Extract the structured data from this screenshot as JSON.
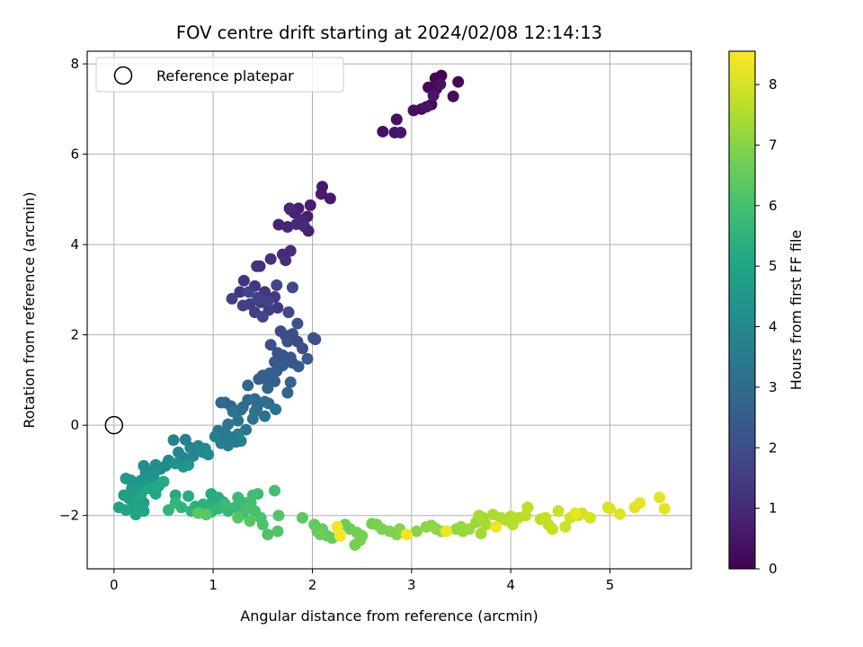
{
  "chart_data": {
    "type": "scatter",
    "title": "FOV centre drift starting at 2024/02/08 12:14:13",
    "xlabel": "Angular distance from reference (arcmin)",
    "ylabel": "Rotation from reference (arcmin)",
    "xlim": [
      -0.27,
      5.82
    ],
    "ylim": [
      -3.18,
      8.28
    ],
    "x_ticks": [
      0,
      1,
      2,
      3,
      4,
      5
    ],
    "y_ticks": [
      -2,
      0,
      2,
      4,
      6,
      8
    ],
    "grid": true,
    "legend": {
      "placement": "upper-left",
      "entries": [
        "Reference platepar"
      ]
    },
    "reference_point": {
      "x": 0,
      "y": 0
    },
    "colorbar": {
      "label": "Hours from first FF file",
      "colormap": "viridis",
      "range": [
        0,
        8.55
      ],
      "ticks": [
        0,
        1,
        2,
        3,
        4,
        5,
        6,
        7,
        8
      ]
    },
    "series": [
      {
        "comment_free": true,
        "points": [
          [
            3.3,
            7.74
          ],
          [
            3.47,
            7.6
          ],
          [
            3.24,
            7.68
          ],
          [
            3.25,
            7.45
          ],
          [
            3.17,
            7.48
          ],
          [
            3.2,
            7.1
          ],
          [
            3.42,
            7.28
          ],
          [
            3.1,
            7.0
          ],
          [
            3.02,
            6.97
          ],
          [
            2.85,
            6.77
          ],
          [
            2.71,
            6.5
          ],
          [
            2.83,
            6.48
          ],
          [
            3.29,
            7.55
          ],
          [
            3.15,
            7.05
          ],
          [
            3.22,
            7.3
          ],
          [
            2.89,
            6.48
          ],
          [
            2.1,
            5.28
          ],
          [
            2.18,
            5.02
          ],
          [
            2.09,
            5.12
          ],
          [
            1.98,
            4.87
          ],
          [
            1.95,
            4.62
          ],
          [
            1.86,
            4.8
          ],
          [
            1.77,
            4.8
          ],
          [
            1.82,
            4.7
          ],
          [
            1.96,
            4.3
          ],
          [
            1.66,
            4.44
          ],
          [
            1.9,
            4.55
          ],
          [
            1.75,
            4.39
          ],
          [
            1.78,
            4.77
          ],
          [
            1.92,
            4.4
          ],
          [
            1.84,
            4.45
          ],
          [
            1.7,
            3.78
          ],
          [
            1.78,
            3.86
          ],
          [
            1.73,
            3.65
          ],
          [
            1.58,
            3.68
          ],
          [
            1.47,
            3.52
          ],
          [
            1.44,
            3.52
          ],
          [
            1.31,
            3.2
          ],
          [
            1.42,
            3.08
          ],
          [
            1.27,
            2.95
          ],
          [
            1.52,
            2.95
          ],
          [
            1.48,
            2.72
          ],
          [
            1.62,
            2.84
          ],
          [
            1.65,
            2.6
          ],
          [
            1.56,
            2.55
          ],
          [
            1.37,
            2.68
          ],
          [
            1.42,
            2.5
          ],
          [
            1.3,
            2.65
          ],
          [
            1.19,
            2.8
          ],
          [
            1.45,
            2.82
          ],
          [
            1.55,
            2.75
          ],
          [
            1.36,
            2.95
          ],
          [
            1.5,
            2.4
          ],
          [
            1.64,
            3.1
          ],
          [
            1.8,
            3.05
          ],
          [
            1.76,
            2.5
          ],
          [
            1.68,
            2.08
          ],
          [
            1.73,
            1.98
          ],
          [
            1.8,
            2.02
          ],
          [
            1.85,
            1.85
          ],
          [
            1.9,
            1.7
          ],
          [
            1.75,
            1.85
          ],
          [
            1.58,
            1.78
          ],
          [
            1.65,
            1.6
          ],
          [
            1.85,
            2.25
          ],
          [
            2.01,
            1.93
          ],
          [
            2.03,
            1.9
          ],
          [
            1.7,
            1.55
          ],
          [
            1.78,
            1.5
          ],
          [
            1.62,
            1.4
          ],
          [
            1.8,
            1.38
          ],
          [
            1.86,
            1.3
          ],
          [
            1.7,
            1.32
          ],
          [
            1.95,
            1.47
          ],
          [
            1.64,
            1.2
          ],
          [
            1.57,
            1.15
          ],
          [
            1.5,
            1.1
          ],
          [
            1.46,
            1.02
          ],
          [
            1.56,
            0.92
          ],
          [
            1.62,
            0.97
          ],
          [
            1.78,
            0.95
          ],
          [
            1.75,
            0.72
          ],
          [
            1.55,
            0.82
          ],
          [
            1.35,
            0.88
          ],
          [
            1.12,
            0.5
          ],
          [
            1.18,
            0.42
          ],
          [
            1.08,
            0.5
          ],
          [
            1.3,
            0.4
          ],
          [
            1.35,
            0.56
          ],
          [
            1.42,
            0.58
          ],
          [
            1.44,
            0.38
          ],
          [
            1.52,
            0.52
          ],
          [
            1.56,
            0.48
          ],
          [
            1.28,
            0.34
          ],
          [
            1.42,
            0.3
          ],
          [
            1.63,
            0.35
          ],
          [
            1.52,
            0.2
          ],
          [
            1.4,
            0.14
          ],
          [
            1.2,
            0.3
          ],
          [
            1.25,
            0.1
          ],
          [
            1.15,
            0.02
          ],
          [
            1.33,
            -0.1
          ],
          [
            1.12,
            -0.17
          ],
          [
            1.05,
            -0.12
          ],
          [
            1.1,
            -0.33
          ],
          [
            1.18,
            -0.27
          ],
          [
            1.25,
            -0.2
          ],
          [
            1.23,
            -0.37
          ],
          [
            1.15,
            -0.45
          ],
          [
            1.08,
            -0.4
          ],
          [
            1.02,
            -0.25
          ],
          [
            1.28,
            -0.35
          ],
          [
            0.72,
            -0.32
          ],
          [
            0.6,
            -0.33
          ],
          [
            0.77,
            -0.5
          ],
          [
            0.85,
            -0.46
          ],
          [
            0.65,
            -0.6
          ],
          [
            0.7,
            -0.72
          ],
          [
            0.8,
            -0.68
          ],
          [
            0.9,
            -0.6
          ],
          [
            0.92,
            -0.52
          ],
          [
            0.95,
            -0.65
          ],
          [
            0.55,
            -0.78
          ],
          [
            0.52,
            -0.9
          ],
          [
            0.42,
            -0.88
          ],
          [
            0.47,
            -0.97
          ],
          [
            0.38,
            -1.02
          ],
          [
            0.32,
            -1.05
          ],
          [
            0.3,
            -0.9
          ],
          [
            0.4,
            -1.12
          ],
          [
            0.62,
            -0.85
          ],
          [
            0.7,
            -0.92
          ],
          [
            0.75,
            -0.88
          ],
          [
            0.27,
            -1.23
          ],
          [
            0.38,
            -1.3
          ],
          [
            0.33,
            -1.18
          ],
          [
            0.22,
            -1.28
          ],
          [
            0.17,
            -1.22
          ],
          [
            0.12,
            -1.18
          ],
          [
            0.18,
            -1.4
          ],
          [
            0.28,
            -1.48
          ],
          [
            0.2,
            -1.58
          ],
          [
            0.15,
            -1.62
          ],
          [
            0.1,
            -1.55
          ],
          [
            0.23,
            -1.65
          ],
          [
            0.3,
            -1.72
          ],
          [
            0.25,
            -1.8
          ],
          [
            0.18,
            -1.85
          ],
          [
            0.05,
            -1.82
          ],
          [
            0.12,
            -1.88
          ],
          [
            0.22,
            -1.98
          ],
          [
            0.3,
            -1.9
          ],
          [
            0.27,
            -1.55
          ],
          [
            0.42,
            -1.52
          ],
          [
            0.35,
            -1.4
          ],
          [
            0.45,
            -1.35
          ],
          [
            0.5,
            -1.25
          ],
          [
            0.62,
            -1.55
          ],
          [
            0.75,
            -1.57
          ],
          [
            0.98,
            -1.52
          ],
          [
            1.0,
            -1.65
          ],
          [
            1.05,
            -1.6
          ],
          [
            1.1,
            -1.7
          ],
          [
            1.0,
            -1.78
          ],
          [
            0.9,
            -1.75
          ],
          [
            0.82,
            -1.8
          ],
          [
            0.78,
            -1.9
          ],
          [
            0.68,
            -1.82
          ],
          [
            0.55,
            -1.88
          ],
          [
            0.62,
            -1.72
          ],
          [
            0.98,
            -1.92
          ],
          [
            1.05,
            -1.85
          ],
          [
            1.15,
            -1.9
          ],
          [
            1.22,
            -1.82
          ],
          [
            1.12,
            -1.75
          ],
          [
            1.25,
            -1.6
          ],
          [
            1.32,
            -1.72
          ],
          [
            1.38,
            -1.72
          ],
          [
            1.45,
            -1.52
          ],
          [
            1.4,
            -1.55
          ],
          [
            1.62,
            -1.45
          ],
          [
            1.3,
            -1.95
          ],
          [
            1.35,
            -1.85
          ],
          [
            1.42,
            -1.9
          ],
          [
            1.48,
            -2.05
          ],
          [
            1.5,
            -2.2
          ],
          [
            1.55,
            -2.42
          ],
          [
            1.65,
            -2.35
          ],
          [
            1.66,
            -2.0
          ],
          [
            1.37,
            -2.12
          ],
          [
            1.25,
            -2.05
          ],
          [
            0.93,
            -1.98
          ],
          [
            0.85,
            -1.95
          ],
          [
            1.9,
            -2.05
          ],
          [
            2.02,
            -2.2
          ],
          [
            2.05,
            -2.35
          ],
          [
            2.1,
            -2.3
          ],
          [
            2.15,
            -2.45
          ],
          [
            2.2,
            -2.5
          ],
          [
            2.08,
            -2.42
          ],
          [
            2.33,
            -2.2
          ],
          [
            2.38,
            -2.3
          ],
          [
            2.45,
            -2.38
          ],
          [
            2.5,
            -2.45
          ],
          [
            2.43,
            -2.65
          ],
          [
            2.48,
            -2.55
          ],
          [
            2.6,
            -2.18
          ],
          [
            2.65,
            -2.2
          ],
          [
            2.7,
            -2.3
          ],
          [
            2.78,
            -2.35
          ],
          [
            2.85,
            -2.42
          ],
          [
            2.88,
            -2.3
          ],
          [
            3.05,
            -2.35
          ],
          [
            3.15,
            -2.25
          ],
          [
            3.2,
            -2.22
          ],
          [
            3.25,
            -2.3
          ],
          [
            3.3,
            -2.35
          ],
          [
            3.45,
            -2.3
          ],
          [
            3.5,
            -2.25
          ],
          [
            3.52,
            -2.35
          ],
          [
            3.58,
            -2.3
          ],
          [
            3.65,
            -2.15
          ],
          [
            3.7,
            -2.4
          ],
          [
            3.75,
            -2.2
          ],
          [
            3.72,
            -2.05
          ],
          [
            3.68,
            -2.0
          ],
          [
            3.82,
            -1.98
          ],
          [
            3.9,
            -2.05
          ],
          [
            3.95,
            -2.1
          ],
          [
            4.0,
            -2.02
          ],
          [
            4.02,
            -2.2
          ],
          [
            4.08,
            -2.05
          ],
          [
            4.15,
            -2.0
          ],
          [
            4.17,
            -1.82
          ],
          [
            4.3,
            -2.08
          ],
          [
            4.35,
            -2.05
          ],
          [
            4.38,
            -2.2
          ],
          [
            4.42,
            -2.3
          ],
          [
            4.48,
            -1.9
          ],
          [
            4.55,
            -2.25
          ],
          [
            4.6,
            -2.05
          ],
          [
            4.68,
            -2.0
          ],
          [
            4.72,
            -1.95
          ],
          [
            4.8,
            -2.05
          ],
          [
            4.98,
            -1.82
          ],
          [
            5.0,
            -1.85
          ],
          [
            5.1,
            -1.97
          ],
          [
            5.25,
            -1.82
          ],
          [
            5.3,
            -1.72
          ],
          [
            5.5,
            -1.6
          ],
          [
            5.55,
            -1.85
          ],
          [
            4.65,
            -1.95
          ],
          [
            3.85,
            -2.25
          ],
          [
            3.35,
            -2.35
          ],
          [
            2.95,
            -2.42
          ],
          [
            2.25,
            -2.25
          ],
          [
            2.28,
            -2.45
          ]
        ]
      }
    ]
  }
}
